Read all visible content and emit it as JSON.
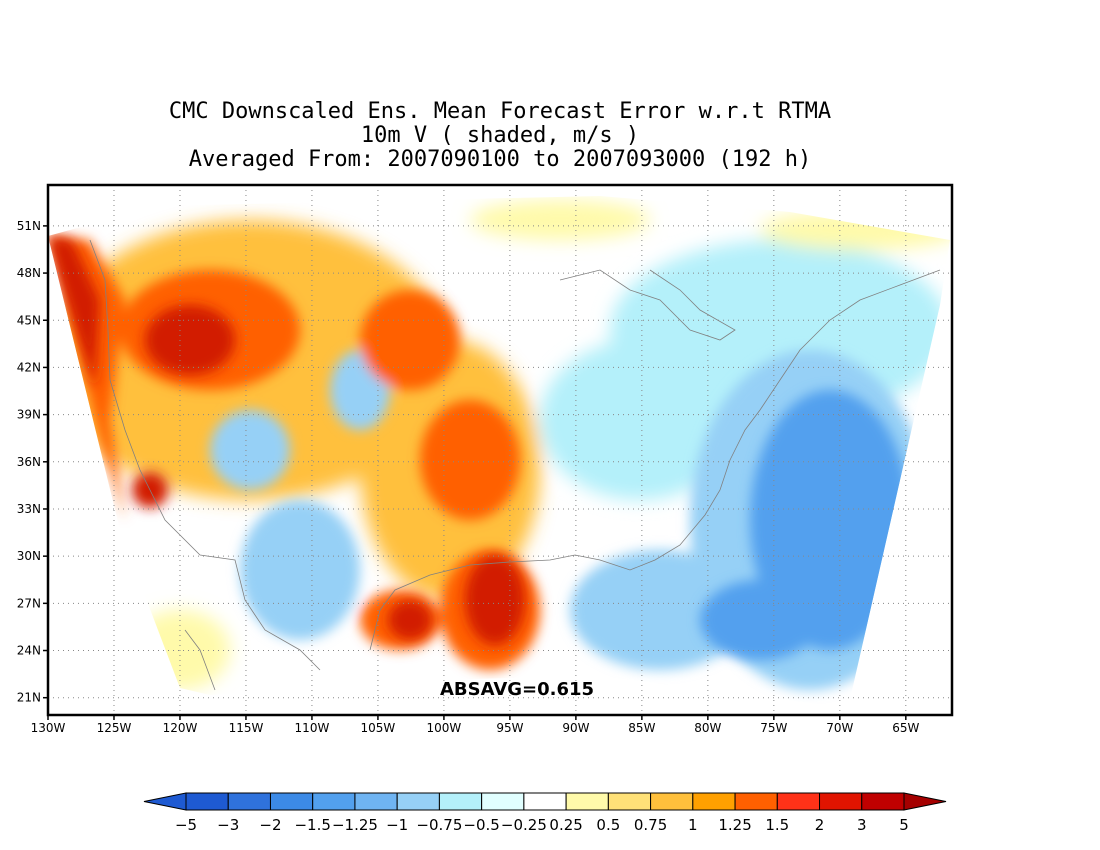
{
  "title": {
    "line1": "CMC Downscaled Ens. Mean Forecast Error w.r.t RTMA",
    "line2": "10m V ( shaded, m/s )",
    "line3": "Averaged From: 2007090100 to 2007093000 (192 h)"
  },
  "map": {
    "lon_ticks": [
      "130W",
      "125W",
      "120W",
      "115W",
      "110W",
      "105W",
      "100W",
      "95W",
      "90W",
      "85W",
      "80W",
      "75W",
      "70W",
      "65W"
    ],
    "lon_values": [
      -130,
      -125,
      -120,
      -115,
      -110,
      -105,
      -100,
      -95,
      -90,
      -85,
      -80,
      -75,
      -70,
      -65
    ],
    "lat_ticks": [
      "51N",
      "48N",
      "45N",
      "42N",
      "39N",
      "36N",
      "33N",
      "30N",
      "27N",
      "24N",
      "21N"
    ],
    "lat_values": [
      51,
      48,
      45,
      42,
      39,
      36,
      33,
      30,
      27,
      24,
      21
    ],
    "lon_range": [
      -130,
      -61.5
    ],
    "lat_range": [
      19.9,
      53.6
    ],
    "grid": true,
    "absavg_label": "ABSAVG=0.615"
  },
  "colorbar": {
    "labels": [
      "-5",
      "-3",
      "-2",
      "-1.5",
      "-1.25",
      "-1",
      "-0.75",
      "-0.5",
      "-0.25",
      "0.25",
      "0.5",
      "0.75",
      "1",
      "1.25",
      "1.5",
      "2",
      "3",
      "5"
    ],
    "colors": [
      "#1e5ad2",
      "#2f72dc",
      "#3c8ae6",
      "#52a0ee",
      "#6fb4f2",
      "#96d0f6",
      "#b4f0fa",
      "#e1ffff",
      "#ffffff",
      "#fffaaa",
      "#ffe178",
      "#ffc03c",
      "#ffa000",
      "#ff6000",
      "#ff3218",
      "#e11400",
      "#c00000",
      "#a50000"
    ],
    "under_color": "#1e5ad2",
    "over_color": "#a50000"
  },
  "colors": {
    "strong_pos": "#d21a00",
    "pos": "#ff6000",
    "weak_pos": "#ffc03c",
    "faint_pos": "#fffaaa",
    "faint_neg": "#b4f0fa",
    "weak_neg": "#96d0f6",
    "neg": "#52a0ee",
    "strong_neg": "#3c8ae6"
  }
}
